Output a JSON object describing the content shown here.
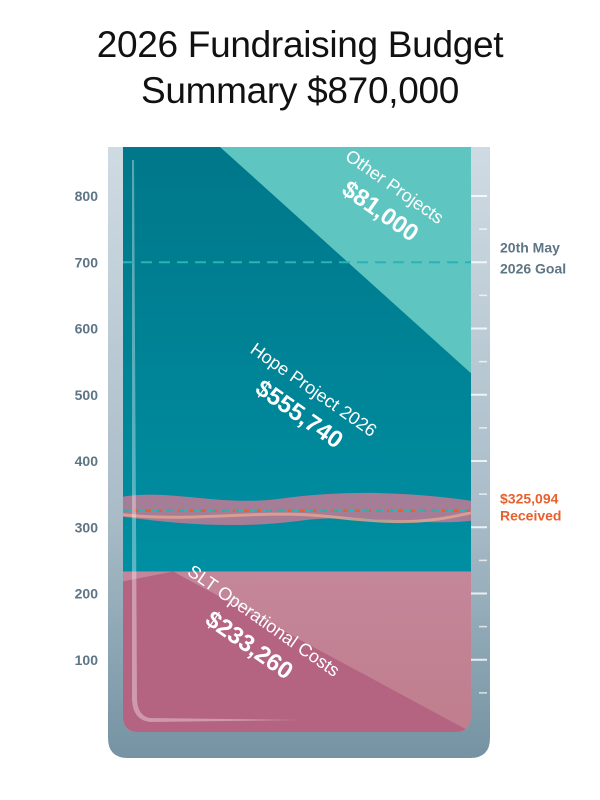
{
  "title": {
    "line1": "2026 Fundraising Budget",
    "line2": "Summary $870,000"
  },
  "chart_data": {
    "type": "stacked-gauge",
    "title": "2026 Fundraising Budget Summary $870,000",
    "total": 870000,
    "unit": "thousands",
    "ylim": [
      0,
      870
    ],
    "yticks": [
      "100",
      "200",
      "300",
      "400",
      "500",
      "600",
      "700",
      "800"
    ],
    "yticks_values": [
      100,
      200,
      300,
      400,
      500,
      600,
      700,
      800
    ],
    "segments": [
      {
        "name": "SLT Operational Costs",
        "value_label": "$233,260",
        "value": 233260,
        "colors": [
          "#b5637f",
          "#c08497"
        ]
      },
      {
        "name": "Hope Project 2026",
        "value_label": "$555,740",
        "value": 555740,
        "colors": [
          "#007a8f",
          "#008ea1"
        ]
      },
      {
        "name": "Other Projects",
        "value_label": "$81,000",
        "value": 81000,
        "colors": [
          "#5bc4bf"
        ]
      }
    ],
    "goal": {
      "value": 700,
      "label_line1": "20th May",
      "label_line2": "2026 Goal",
      "color": "#29b4b6"
    },
    "received": {
      "value": 325,
      "label_line1": "$325,094",
      "label_line2": "Received",
      "color": "#e8602c"
    }
  },
  "colors": {
    "glass_light": "#c9d6de",
    "glass_dark": "#7f9aa9",
    "tick_text": "#5d7585",
    "received": "#e8602c"
  }
}
